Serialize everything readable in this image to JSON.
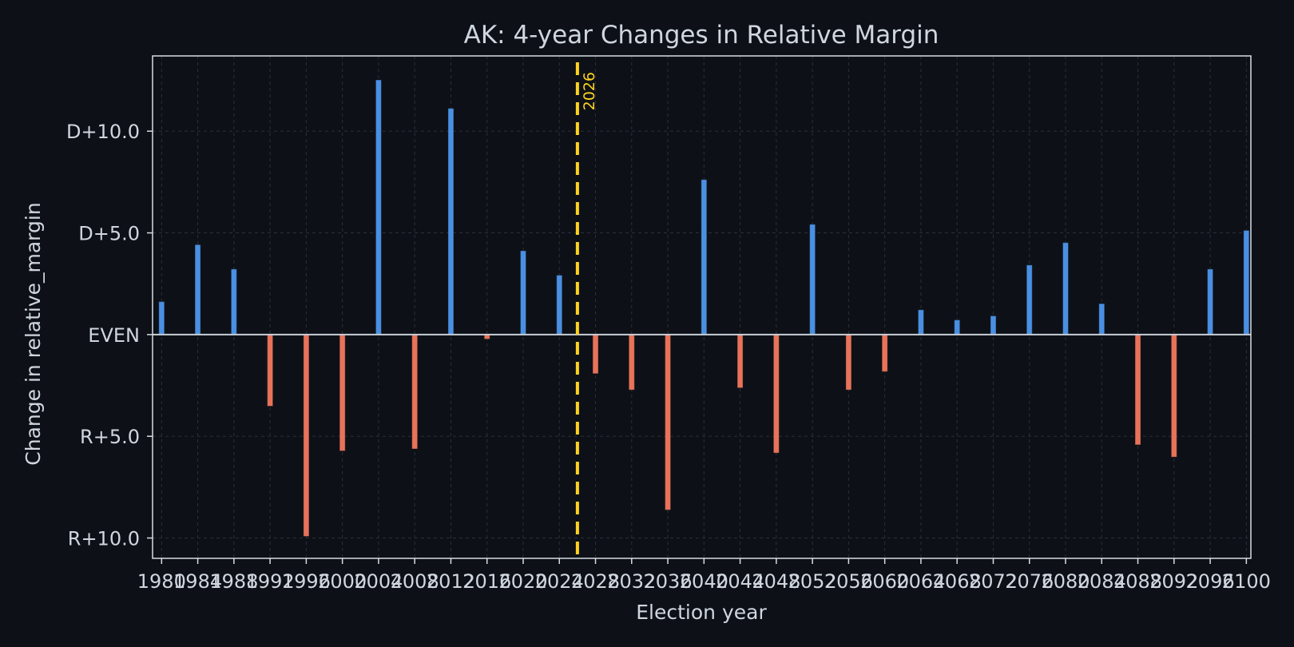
{
  "chart_data": {
    "type": "bar",
    "title": "AK: 4-year Changes in Relative Margin",
    "xlabel": "Election year",
    "ylabel": "Change in relative_margin",
    "ylim": [
      -11,
      13.7
    ],
    "xlim": [
      1979,
      2100.5
    ],
    "grid": true,
    "y_ticks": [
      {
        "value": 10,
        "label": "D+10.0"
      },
      {
        "value": 5,
        "label": "D+5.0"
      },
      {
        "value": 0,
        "label": "EVEN"
      },
      {
        "value": -5,
        "label": "R+5.0"
      },
      {
        "value": -10,
        "label": "R+10.0"
      }
    ],
    "x_ticks": [
      1980,
      1984,
      1988,
      1992,
      1996,
      2000,
      2004,
      2008,
      2012,
      2016,
      2020,
      2024,
      2028,
      2032,
      2036,
      2040,
      2044,
      2048,
      2052,
      2056,
      2060,
      2064,
      2068,
      2072,
      2076,
      2080,
      2084,
      2088,
      2092,
      2096,
      2100
    ],
    "x": [
      1980,
      1984,
      1988,
      1992,
      1996,
      2000,
      2004,
      2008,
      2012,
      2016,
      2020,
      2024,
      2028,
      2032,
      2036,
      2040,
      2044,
      2048,
      2052,
      2056,
      2060,
      2064,
      2068,
      2072,
      2076,
      2080,
      2084,
      2088,
      2092,
      2096,
      2100
    ],
    "values": [
      1.6,
      4.4,
      3.2,
      -3.5,
      -9.9,
      -5.7,
      12.5,
      -5.6,
      11.1,
      -0.2,
      4.1,
      2.9,
      -1.9,
      -2.7,
      -8.6,
      7.6,
      -2.6,
      -5.8,
      5.4,
      -2.7,
      -1.8,
      1.2,
      0.7,
      0.9,
      3.4,
      4.5,
      1.5,
      -5.4,
      -6.0,
      3.2,
      5.1
    ],
    "marker": {
      "x": 2026,
      "label": "2026",
      "color": "#ffd21f"
    },
    "colors": {
      "positive": "#4a90e2",
      "negative": "#e8735a",
      "zero_line": "#c8ced6",
      "grid": "#2a2f38",
      "frame": "#d8dde3"
    }
  }
}
